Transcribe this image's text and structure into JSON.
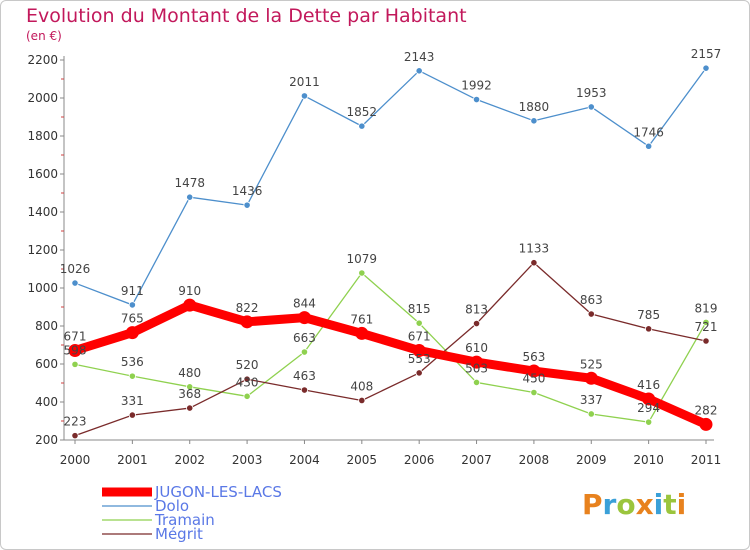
{
  "chart_data": {
    "type": "line",
    "title": "Evolution du Montant de la Dette par Habitant",
    "subtitle": "(en €)",
    "x": [
      "2000",
      "2001",
      "2002",
      "2003",
      "2004",
      "2005",
      "2006",
      "2007",
      "2008",
      "2009",
      "2010",
      "2011"
    ],
    "ylim": [
      200,
      2200
    ],
    "yticks": [
      200,
      400,
      600,
      800,
      1000,
      1200,
      1400,
      1600,
      1800,
      2000,
      2200
    ],
    "grid": false,
    "legend_position": "bottom-left",
    "series": [
      {
        "name": "JUGON-LES-LACS",
        "color": "#ff0000",
        "values": [
          671,
          765,
          910,
          822,
          844,
          761,
          671,
          610,
          563,
          525,
          416,
          282
        ]
      },
      {
        "name": "Dolo",
        "color": "#4d8fcc",
        "values": [
          1026,
          911,
          1478,
          1436,
          2011,
          1852,
          2143,
          1992,
          1880,
          1953,
          1746,
          2157
        ]
      },
      {
        "name": "Tramain",
        "color": "#8fd14f",
        "values": [
          598,
          536,
          480,
          430,
          663,
          1079,
          815,
          503,
          450,
          337,
          294,
          819
        ]
      },
      {
        "name": "Mégrit",
        "color": "#7a2b2b",
        "values": [
          223,
          331,
          368,
          520,
          463,
          408,
          553,
          813,
          1133,
          863,
          785,
          721
        ]
      }
    ]
  },
  "brand": {
    "letters": [
      "P",
      "r",
      "o",
      "x",
      "i",
      "t",
      "i"
    ],
    "colors": [
      "#e8821e",
      "#3aa0d8",
      "#9bc53d",
      "#e8821e",
      "#3aa0d8",
      "#9bc53d",
      "#e8821e"
    ]
  }
}
